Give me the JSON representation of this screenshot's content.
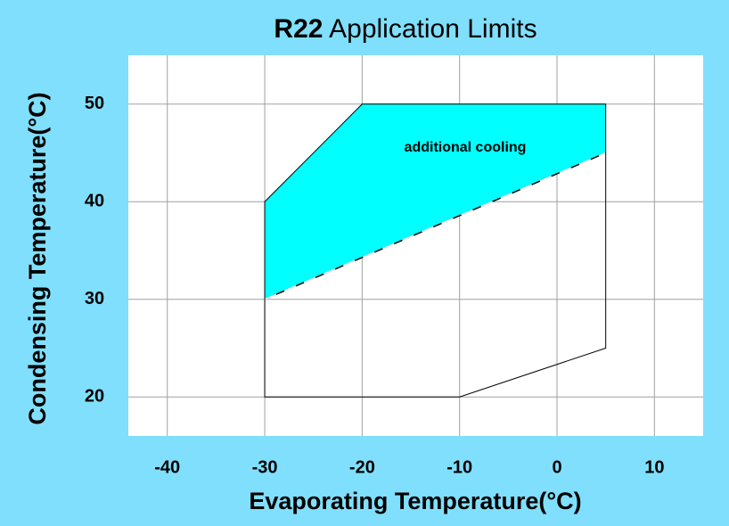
{
  "chart_data": {
    "type": "polygon",
    "title": [
      "R22",
      "Application Limits"
    ],
    "x_label": "Evaporating Temperature(°C)",
    "y_label": "Condensing Temperature(°C)",
    "annotation": "additional cooling",
    "xlim": [
      -44,
      15
    ],
    "ylim": [
      16,
      55
    ],
    "xticks": [
      -40,
      -30,
      -20,
      -10,
      0,
      10
    ],
    "yticks": [
      20,
      30,
      40,
      50
    ],
    "grid": true,
    "series": [
      {
        "color": "#00ffff",
        "fill": true,
        "dashed_edge": "#ffffff",
        "x": [
          -30,
          -20,
          5,
          5,
          -30
        ],
        "values": [
          40,
          50,
          50,
          45,
          30
        ]
      },
      {
        "color": "#000000",
        "fill": false,
        "x": [
          -30,
          -30,
          -20,
          5,
          5,
          -10
        ],
        "values": [
          20,
          40,
          50,
          50,
          25,
          20
        ]
      }
    ]
  }
}
